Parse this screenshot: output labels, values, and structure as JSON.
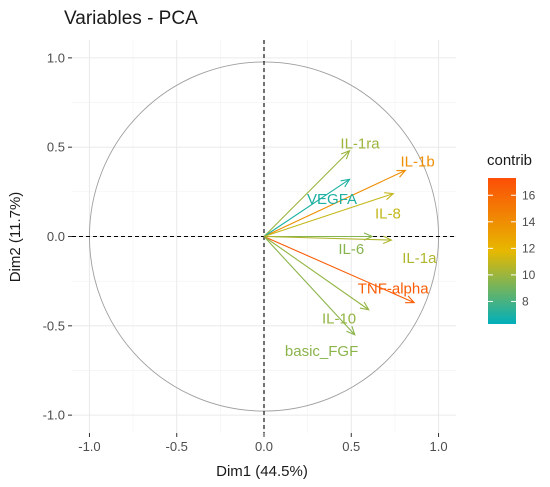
{
  "chart_data": {
    "type": "scatter",
    "subtype": "pca-variable-correlation-circle",
    "title": "Variables - PCA",
    "xlabel": "Dim1 (44.5%)",
    "ylabel": "Dim2 (11.7%)",
    "xlim": [
      -1.0,
      1.0
    ],
    "ylim": [
      -1.0,
      1.0
    ],
    "x_ticks": [
      "-1.0",
      "-0.5",
      "0.0",
      "0.5",
      "1.0"
    ],
    "y_ticks": [
      "-1.0",
      "-0.5",
      "0.0",
      "0.5",
      "1.0"
    ],
    "grid": true,
    "legend": {
      "title": "contrib",
      "placement": "right",
      "min": 6.3,
      "max": 17.3,
      "ticks": [
        "8",
        "10",
        "12",
        "14",
        "16"
      ],
      "colors": [
        "#00AFBB",
        "#E7B800",
        "#FC4E07"
      ]
    },
    "variables": [
      {
        "name": "IL-1ra",
        "x": 0.49,
        "y": 0.48,
        "contrib": 10.0
      },
      {
        "name": "IL-1b",
        "x": 0.81,
        "y": 0.37,
        "contrib": 14.0
      },
      {
        "name": "VEGFA",
        "x": 0.49,
        "y": 0.32,
        "contrib": 7.0
      },
      {
        "name": "IL-8",
        "x": 0.74,
        "y": 0.24,
        "contrib": 11.0
      },
      {
        "name": "IL-6",
        "x": 0.62,
        "y": 0.0,
        "contrib": 9.5
      },
      {
        "name": "IL-1a",
        "x": 0.73,
        "y": -0.02,
        "contrib": 10.5
      },
      {
        "name": "TNF-alpha",
        "x": 0.86,
        "y": -0.37,
        "contrib": 16.5
      },
      {
        "name": "IL-10",
        "x": 0.6,
        "y": -0.41,
        "contrib": 9.8
      },
      {
        "name": "basic_FGF",
        "x": 0.52,
        "y": -0.55,
        "contrib": 9.6
      }
    ]
  }
}
